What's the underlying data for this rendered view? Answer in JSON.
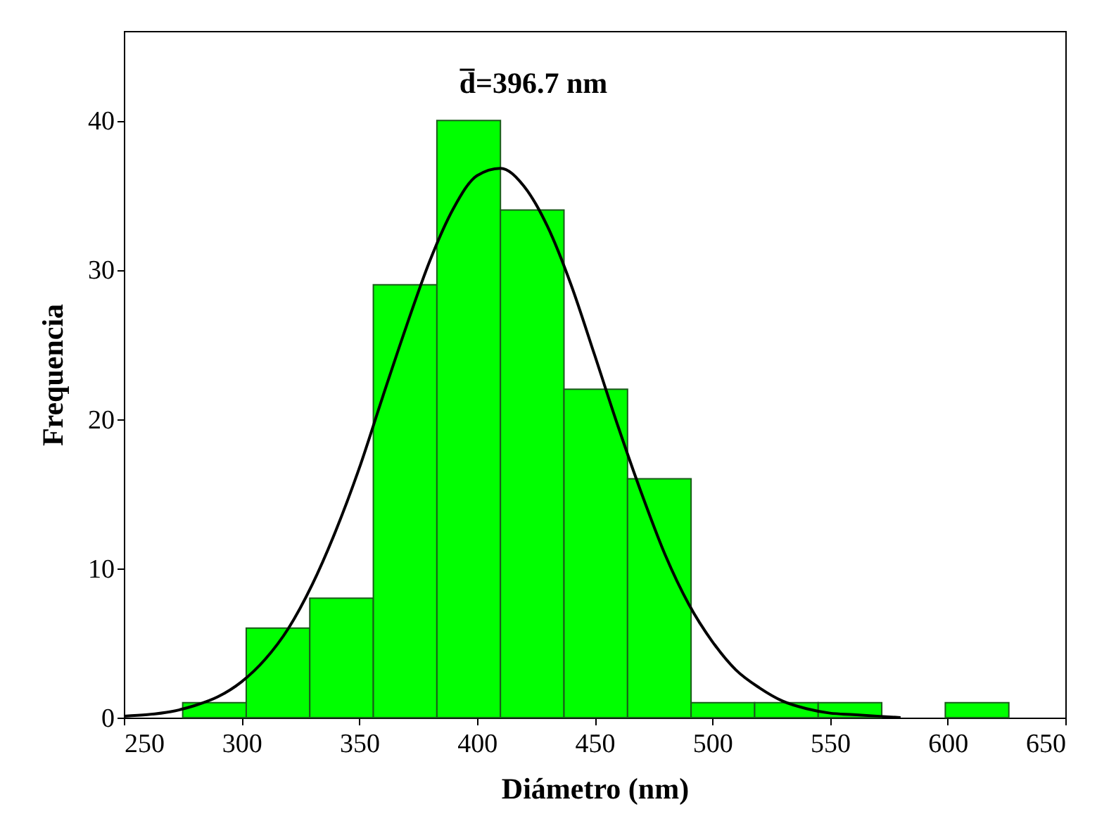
{
  "chart_data": {
    "type": "histogram",
    "xlabel": "Diámetro (nm)",
    "ylabel": "Frequencia",
    "annotations": [
      "d̅=396.7 nm"
    ],
    "bins": [
      275,
      302,
      329,
      356,
      383,
      410,
      437,
      464,
      491,
      518,
      545,
      572,
      599,
      626
    ],
    "values": [
      1,
      6,
      8,
      29,
      40,
      34,
      22,
      16,
      1,
      1,
      1,
      0,
      1
    ],
    "color": "#00ff00",
    "series": [
      {
        "type": "line",
        "color": "#000000",
        "x": [
          250,
          260,
          270,
          280,
          290,
          300,
          310,
          320,
          330,
          340,
          350,
          360,
          370,
          380,
          390,
          400,
          410,
          420,
          430,
          440,
          450,
          460,
          470,
          480,
          490,
          500,
          510,
          520,
          530,
          540,
          550,
          560,
          570,
          580
        ],
        "values": [
          0.1,
          0.2,
          0.4,
          0.8,
          1.4,
          2.4,
          3.9,
          6.0,
          8.9,
          12.5,
          16.7,
          21.5,
          26.2,
          30.6,
          34.1,
          36.3,
          36.8,
          35.6,
          32.9,
          29.0,
          24.3,
          19.5,
          15.0,
          10.9,
          7.6,
          5.1,
          3.2,
          2.0,
          1.1,
          0.6,
          0.3,
          0.2,
          0.1,
          0.0
        ]
      }
    ],
    "xlim": [
      250,
      650
    ],
    "xticks": [
      250,
      300,
      350,
      400,
      450,
      500,
      550,
      600,
      650
    ],
    "ylim": [
      0,
      46
    ],
    "yticks": [
      0,
      10,
      20,
      30,
      40
    ],
    "grid": false
  }
}
